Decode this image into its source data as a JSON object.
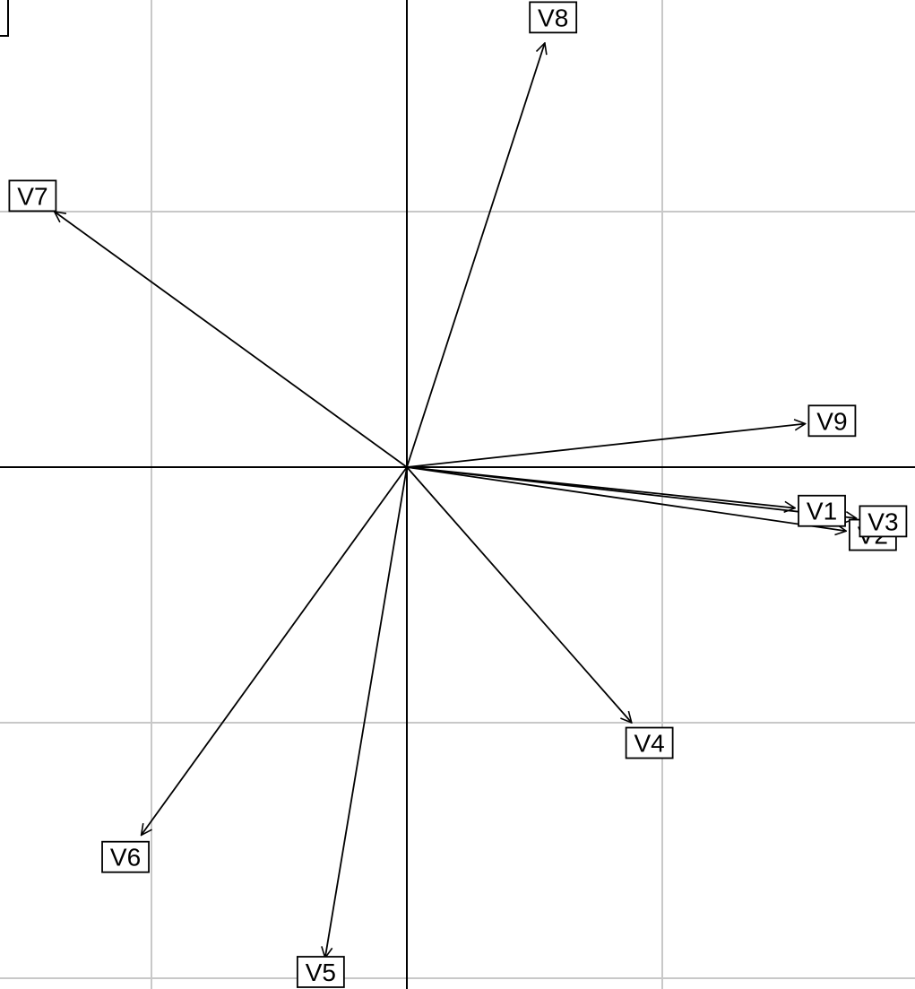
{
  "chart_data": {
    "type": "correlation_circle",
    "title": "",
    "xlabel": "",
    "ylabel": "",
    "grid": true,
    "grid_step": 0.5,
    "xlim": [
      -0.8,
      1.0
    ],
    "ylim": [
      -1.02,
      0.92
    ],
    "colors": {
      "grid": "#c8c8c8",
      "axis": "#000000",
      "arrow": "#000000"
    },
    "series": [
      {
        "label": "V1",
        "x": 0.76,
        "y": -0.08
      },
      {
        "label": "V2",
        "x": 0.86,
        "y": -0.125
      },
      {
        "label": "V3",
        "x": 0.88,
        "y": -0.1
      },
      {
        "label": "V4",
        "x": 0.44,
        "y": -0.5
      },
      {
        "label": "V5",
        "x": -0.16,
        "y": -0.96
      },
      {
        "label": "V6",
        "x": -0.52,
        "y": -0.72
      },
      {
        "label": "V7",
        "x": -0.69,
        "y": 0.5
      },
      {
        "label": "V8",
        "x": 0.27,
        "y": 0.83
      },
      {
        "label": "V9",
        "x": 0.78,
        "y": 0.085
      }
    ]
  }
}
